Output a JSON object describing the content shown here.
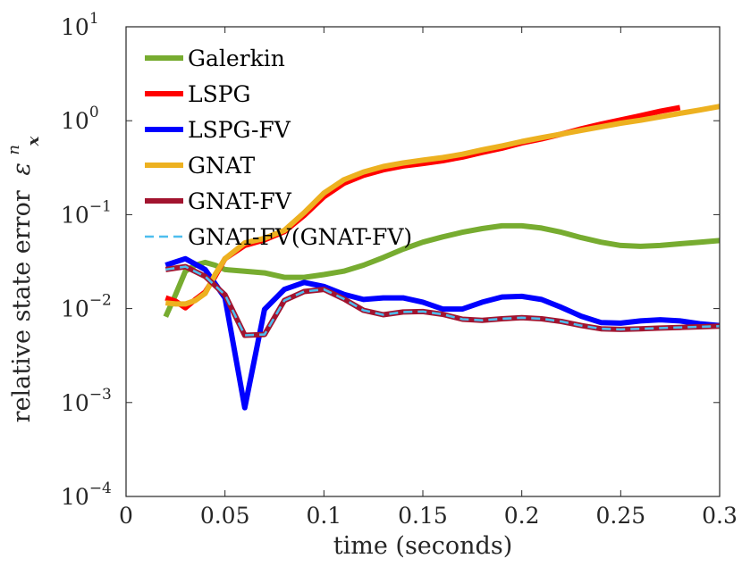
{
  "chart_data": {
    "type": "line",
    "xlabel": "time (seconds)",
    "ylabel": "relative state error",
    "ylabel_symbol": "ε",
    "ylabel_superscript": "n",
    "ylabel_subscript": "x",
    "xlim": [
      0,
      0.3
    ],
    "ylim": [
      0.0001,
      10
    ],
    "yscale": "log",
    "grid": false,
    "legend_position": "top-left",
    "x_ticks": [
      0,
      0.05,
      0.1,
      0.15,
      0.2,
      0.25,
      0.3
    ],
    "x_tick_labels": [
      "0",
      "0.05",
      "0.1",
      "0.15",
      "0.2",
      "0.25",
      "0.3"
    ],
    "y_ticks": [
      0.0001,
      0.001,
      0.01,
      0.1,
      1,
      10
    ],
    "y_tick_bases": [
      "10",
      "10",
      "10",
      "10",
      "10",
      "10"
    ],
    "y_tick_exponents": [
      "−4",
      "−3",
      "−2",
      "−1",
      "0",
      "1"
    ],
    "series": [
      {
        "name": "Galerkin",
        "color": "#77AC30",
        "dash": false,
        "x": [
          0.02,
          0.025,
          0.03,
          0.035,
          0.04,
          0.045,
          0.05,
          0.06,
          0.07,
          0.08,
          0.09,
          0.1,
          0.11,
          0.12,
          0.13,
          0.14,
          0.15,
          0.16,
          0.17,
          0.18,
          0.19,
          0.2,
          0.21,
          0.22,
          0.23,
          0.24,
          0.25,
          0.26,
          0.27,
          0.28,
          0.29,
          0.3
        ],
        "y": [
          0.0082,
          0.014,
          0.025,
          0.029,
          0.031,
          0.029,
          0.026,
          0.025,
          0.024,
          0.0215,
          0.0215,
          0.023,
          0.025,
          0.029,
          0.035,
          0.043,
          0.051,
          0.058,
          0.065,
          0.071,
          0.076,
          0.076,
          0.072,
          0.065,
          0.057,
          0.051,
          0.047,
          0.046,
          0.047,
          0.049,
          0.051,
          0.053
        ]
      },
      {
        "name": "LSPG",
        "color": "#FF0000",
        "dash": false,
        "x": [
          0.02,
          0.025,
          0.03,
          0.035,
          0.04,
          0.045,
          0.05,
          0.06,
          0.07,
          0.08,
          0.09,
          0.1,
          0.11,
          0.12,
          0.13,
          0.14,
          0.15,
          0.16,
          0.17,
          0.18,
          0.19,
          0.2,
          0.21,
          0.22,
          0.23,
          0.24,
          0.25,
          0.26,
          0.27,
          0.28
        ],
        "y": [
          0.013,
          0.012,
          0.0102,
          0.0125,
          0.015,
          0.022,
          0.034,
          0.047,
          0.054,
          0.066,
          0.098,
          0.155,
          0.215,
          0.262,
          0.3,
          0.33,
          0.35,
          0.375,
          0.41,
          0.46,
          0.51,
          0.58,
          0.64,
          0.72,
          0.82,
          0.92,
          1.02,
          1.13,
          1.26,
          1.38
        ]
      },
      {
        "name": "LSPG-FV",
        "color": "#0000FF",
        "dash": false,
        "x": [
          0.02,
          0.03,
          0.04,
          0.05,
          0.06,
          0.07,
          0.08,
          0.09,
          0.1,
          0.11,
          0.12,
          0.13,
          0.14,
          0.15,
          0.16,
          0.17,
          0.18,
          0.19,
          0.2,
          0.21,
          0.22,
          0.23,
          0.24,
          0.25,
          0.26,
          0.27,
          0.28,
          0.29,
          0.3
        ],
        "y": [
          0.029,
          0.034,
          0.026,
          0.013,
          0.00088,
          0.0098,
          0.016,
          0.019,
          0.0172,
          0.0142,
          0.0125,
          0.013,
          0.013,
          0.0117,
          0.0099,
          0.0099,
          0.0117,
          0.0133,
          0.0135,
          0.0125,
          0.0103,
          0.0083,
          0.0071,
          0.007,
          0.0074,
          0.0076,
          0.0074,
          0.0069,
          0.0066
        ]
      },
      {
        "name": "GNAT",
        "color": "#EDB120",
        "dash": false,
        "x": [
          0.02,
          0.025,
          0.03,
          0.035,
          0.04,
          0.045,
          0.05,
          0.06,
          0.07,
          0.08,
          0.09,
          0.1,
          0.11,
          0.12,
          0.13,
          0.14,
          0.15,
          0.16,
          0.17,
          0.18,
          0.19,
          0.2,
          0.21,
          0.22,
          0.23,
          0.24,
          0.25,
          0.26,
          0.27,
          0.28,
          0.29,
          0.3
        ],
        "y": [
          0.0115,
          0.0112,
          0.0112,
          0.0122,
          0.0145,
          0.023,
          0.034,
          0.05,
          0.056,
          0.068,
          0.105,
          0.17,
          0.235,
          0.285,
          0.325,
          0.355,
          0.38,
          0.405,
          0.44,
          0.49,
          0.54,
          0.6,
          0.66,
          0.72,
          0.79,
          0.86,
          0.94,
          1.01,
          1.1,
          1.2,
          1.3,
          1.42
        ]
      },
      {
        "name": "GNAT-FV",
        "color": "#A2142F",
        "dash": false,
        "x": [
          0.02,
          0.03,
          0.04,
          0.05,
          0.06,
          0.07,
          0.08,
          0.09,
          0.1,
          0.11,
          0.12,
          0.13,
          0.14,
          0.15,
          0.16,
          0.17,
          0.18,
          0.19,
          0.2,
          0.21,
          0.22,
          0.23,
          0.24,
          0.25,
          0.26,
          0.27,
          0.28,
          0.29,
          0.3
        ],
        "y": [
          0.026,
          0.028,
          0.022,
          0.014,
          0.0052,
          0.0053,
          0.0122,
          0.0152,
          0.016,
          0.0127,
          0.0096,
          0.0086,
          0.0092,
          0.0093,
          0.0087,
          0.0077,
          0.0075,
          0.0078,
          0.008,
          0.0078,
          0.0073,
          0.0066,
          0.0061,
          0.006,
          0.0061,
          0.0062,
          0.0063,
          0.0064,
          0.0065
        ]
      },
      {
        "name": "GNAT-FV(GNAT-FV)",
        "color": "#4DBEEE",
        "dash": true,
        "x": [
          0.02,
          0.03,
          0.04,
          0.05,
          0.06,
          0.07,
          0.08,
          0.09,
          0.1,
          0.11,
          0.12,
          0.13,
          0.14,
          0.15,
          0.16,
          0.17,
          0.18,
          0.19,
          0.2,
          0.21,
          0.22,
          0.23,
          0.24,
          0.25,
          0.26,
          0.27,
          0.28,
          0.29,
          0.3
        ],
        "y": [
          0.026,
          0.028,
          0.022,
          0.014,
          0.0052,
          0.0053,
          0.0122,
          0.0152,
          0.016,
          0.0127,
          0.0096,
          0.0086,
          0.0092,
          0.0093,
          0.0087,
          0.0077,
          0.0075,
          0.0078,
          0.008,
          0.0078,
          0.0073,
          0.0066,
          0.0061,
          0.006,
          0.0061,
          0.0062,
          0.0063,
          0.0064,
          0.0065
        ]
      }
    ]
  }
}
